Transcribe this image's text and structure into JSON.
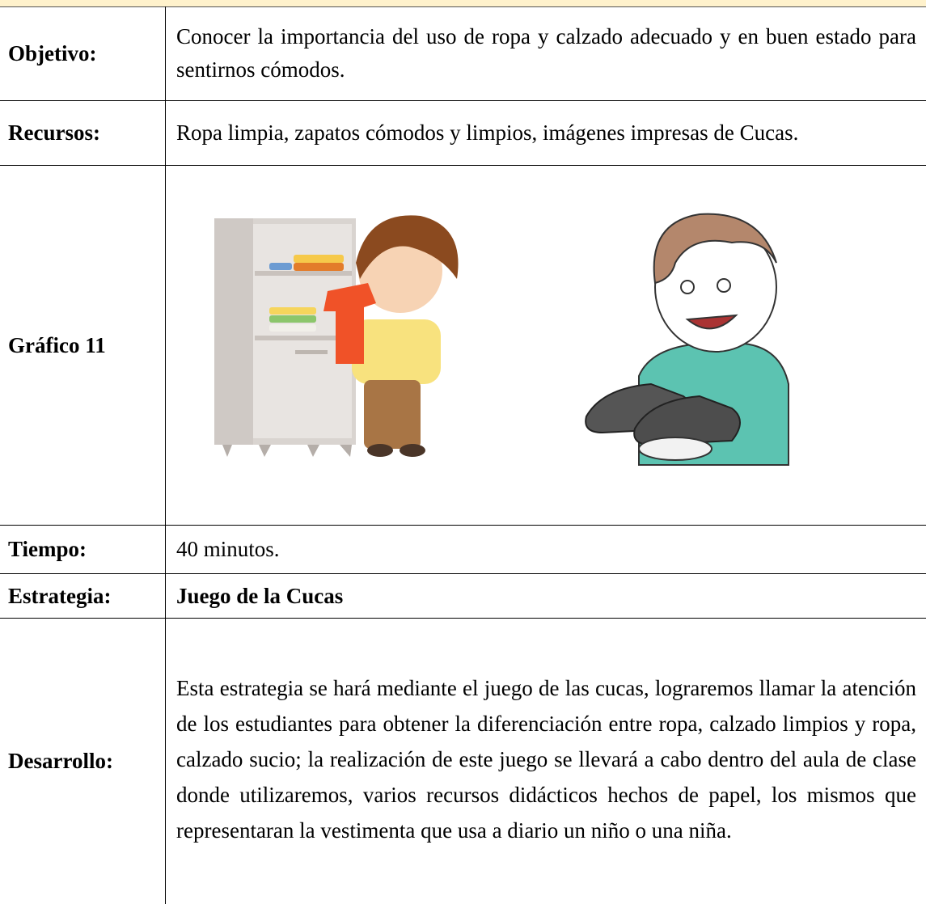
{
  "table": {
    "rows": [
      {
        "label": "Objetivo:",
        "content": "Conocer la importancia del uso de ropa y calzado adecuado y en buen estado para sentirnos cómodos."
      },
      {
        "label": "Recursos:",
        "content": "Ropa limpia, zapatos cómodos y limpios, imágenes impresas de Cucas."
      },
      {
        "label": "Gráfico 11"
      },
      {
        "label": "Tiempo:",
        "content": "40 minutos."
      },
      {
        "label": "Estrategia:",
        "content": "Juego de la Cucas"
      },
      {
        "label": "Desarrollo:",
        "content": "Esta estrategia se hará mediante el juego de las cucas, lograremos llamar la atención de los estudiantes para obtener la diferenciación entre ropa, calzado limpios y ropa, calzado sucio; la realización de este juego se llevará a cabo dentro del aula de clase donde utilizaremos, varios recursos didácticos hechos de papel, los mismos que representaran la vestimenta que usa a diario un niño o una niña."
      }
    ]
  }
}
